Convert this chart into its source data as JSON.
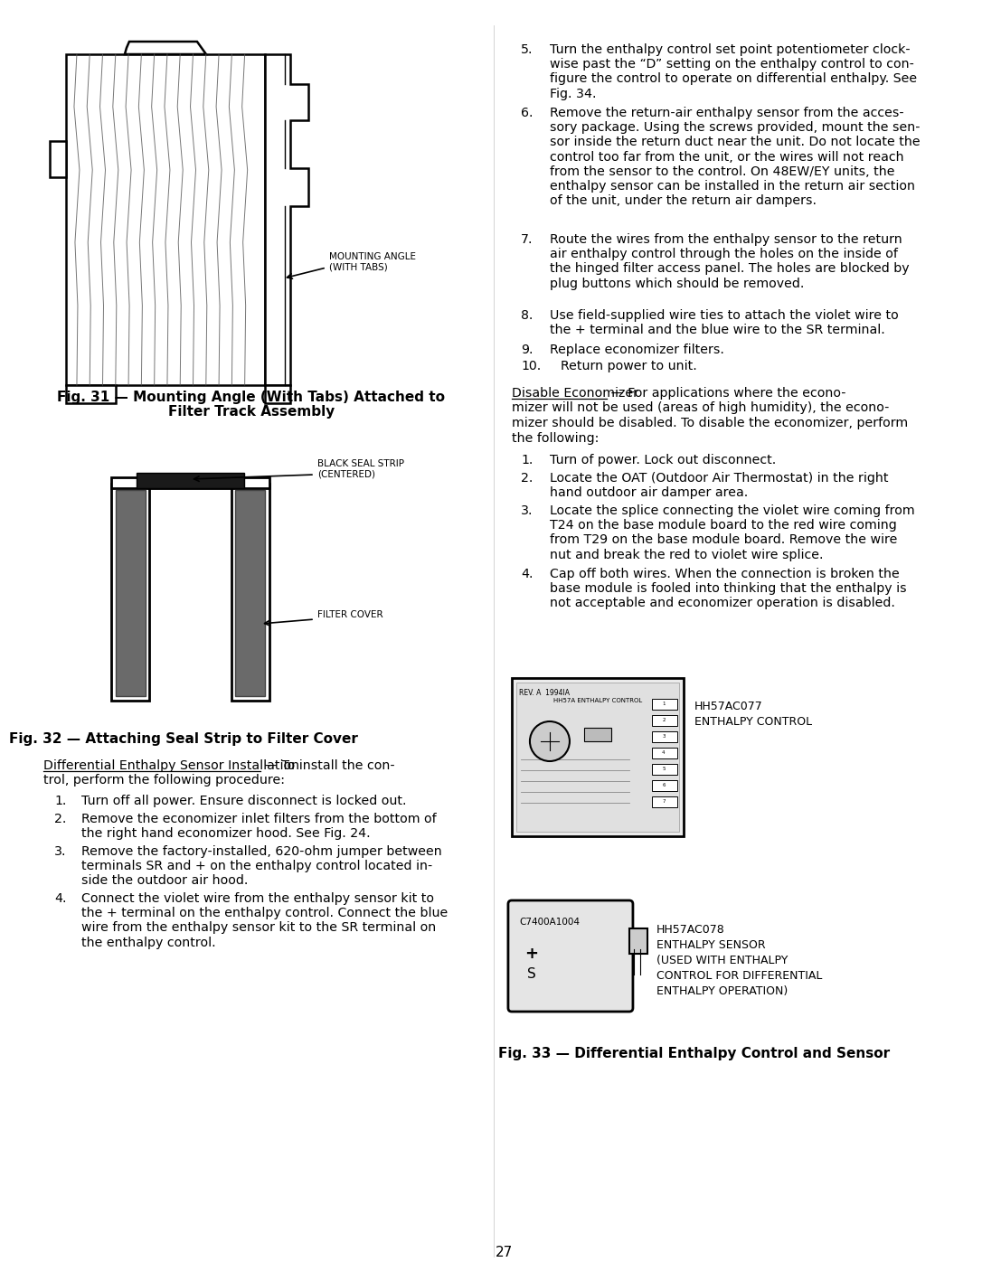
{
  "page_number": "27",
  "background_color": "#ffffff",
  "text_color": "#000000",
  "fig31_caption_line1": "Fig. 31 — Mounting Angle (With Tabs) Attached to",
  "fig31_caption_line2": "Filter Track Assembly",
  "fig32_caption": "Fig. 32 — Attaching Seal Strip to Filter Cover",
  "fig33_caption": "Fig. 33 — Differential Enthalpy Control and Sensor",
  "hh57ac077_label": "HH57AC077\nENTHALPY CONTROL",
  "hh57ac078_label": "HH57AC078\nENTHALPY SENSOR\n(USED WITH ENTHALPY\nCONTROL FOR DIFFERENTIAL\nENTHALPY OPERATION)",
  "c7400a1004_label": "C7400A1004",
  "mounting_angle_label": "MOUNTING ANGLE\n(WITH TABS)",
  "black_seal_label": "BLACK SEAL STRIP\n(CENTERED)",
  "filter_cover_label": "FILTER COVER",
  "diff_install_title": "Differential Enthalpy Sensor Installation",
  "diff_install_dash": " — To install the con-",
  "diff_install_line2": "trol, perform the following procedure:",
  "disable_title": "Disable Economizer",
  "disable_dash": " — For applications where the econo-",
  "disable_line2": "mizer will not be used (areas of high humidity), the econo-",
  "disable_line3": "mizer should be disabled. To disable the economizer, perform",
  "disable_line4": "the following:"
}
